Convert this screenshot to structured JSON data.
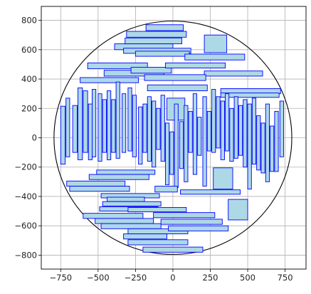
{
  "chart_data": {
    "type": "scatter",
    "title": "",
    "xlabel": "",
    "ylabel": "",
    "xlim": [
      -880,
      890
    ],
    "ylim": [
      -895,
      895
    ],
    "aspect": "equal",
    "grid": true,
    "xticks": [
      -750,
      -500,
      -250,
      0,
      250,
      500,
      750
    ],
    "yticks": [
      -800,
      -600,
      -400,
      -200,
      0,
      200,
      400,
      600,
      800
    ],
    "tick_labels_x": [
      "−750",
      "−500",
      "−250",
      "0",
      "250",
      "500",
      "750"
    ],
    "tick_labels_y": [
      "−800",
      "−600",
      "−400",
      "−200",
      "0",
      "200",
      "400",
      "600",
      "800"
    ],
    "circle": {
      "cx": 0,
      "cy": 0,
      "r": 795
    },
    "colors": {
      "rect_fill": "#add8e6",
      "rect_edge": "#0000ff",
      "circle_edge": "#000000",
      "grid": "#b0b0b0"
    },
    "rectangles": [
      {
        "x0": -180,
        "x1": 70,
        "y0": 730,
        "y1": 770
      },
      {
        "x0": -310,
        "x1": 90,
        "y0": 685,
        "y1": 725
      },
      {
        "x0": -320,
        "x1": 60,
        "y0": 640,
        "y1": 680
      },
      {
        "x0": -390,
        "x1": 0,
        "y0": 600,
        "y1": 640
      },
      {
        "x0": -330,
        "x1": 120,
        "y0": 575,
        "y1": 610
      },
      {
        "x0": -250,
        "x1": 110,
        "y0": 555,
        "y1": 590
      },
      {
        "x0": 210,
        "x1": 360,
        "y0": 580,
        "y1": 700
      },
      {
        "x0": 80,
        "x1": 480,
        "y0": 530,
        "y1": 570
      },
      {
        "x0": -570,
        "x1": -170,
        "y0": 470,
        "y1": 510
      },
      {
        "x0": -460,
        "x1": -60,
        "y0": 420,
        "y1": 460
      },
      {
        "x0": -280,
        "x1": -10,
        "y0": 440,
        "y1": 480
      },
      {
        "x0": -50,
        "x1": 350,
        "y0": 475,
        "y1": 510
      },
      {
        "x0": 210,
        "x1": 600,
        "y0": 420,
        "y1": 455
      },
      {
        "x0": -620,
        "x1": -230,
        "y0": 375,
        "y1": 410
      },
      {
        "x0": -190,
        "x1": 220,
        "y0": 390,
        "y1": 430
      },
      {
        "x0": -170,
        "x1": 230,
        "y0": 320,
        "y1": 360
      },
      {
        "x0": 320,
        "x1": 720,
        "y0": 300,
        "y1": 335
      },
      {
        "x0": 320,
        "x1": 710,
        "y0": 275,
        "y1": 305
      },
      {
        "x0": -40,
        "x1": 80,
        "y0": 120,
        "y1": 270
      },
      {
        "x0": -750,
        "x1": -720,
        "y0": -180,
        "y1": 215
      },
      {
        "x0": -715,
        "x1": -690,
        "y0": -130,
        "y1": 270
      },
      {
        "x0": -670,
        "x1": -640,
        "y0": -100,
        "y1": 220
      },
      {
        "x0": -635,
        "x1": -605,
        "y0": -150,
        "y1": 340
      },
      {
        "x0": -600,
        "x1": -570,
        "y0": -100,
        "y1": 320
      },
      {
        "x0": -565,
        "x1": -540,
        "y0": -150,
        "y1": 230
      },
      {
        "x0": -540,
        "x1": -515,
        "y0": -130,
        "y1": 330
      },
      {
        "x0": -500,
        "x1": -475,
        "y0": -160,
        "y1": 300
      },
      {
        "x0": -470,
        "x1": -445,
        "y0": -100,
        "y1": 260
      },
      {
        "x0": -440,
        "x1": -415,
        "y0": -150,
        "y1": 320
      },
      {
        "x0": -410,
        "x1": -385,
        "y0": -100,
        "y1": 260
      },
      {
        "x0": -380,
        "x1": -355,
        "y0": -140,
        "y1": 380
      },
      {
        "x0": -340,
        "x1": -315,
        "y0": -100,
        "y1": 300
      },
      {
        "x0": -300,
        "x1": -275,
        "y0": -90,
        "y1": 340
      },
      {
        "x0": -270,
        "x1": -245,
        "y0": -130,
        "y1": 290
      },
      {
        "x0": -230,
        "x1": -205,
        "y0": -180,
        "y1": 210
      },
      {
        "x0": -200,
        "x1": -175,
        "y0": -100,
        "y1": 230
      },
      {
        "x0": -170,
        "x1": -145,
        "y0": -160,
        "y1": 280
      },
      {
        "x0": -140,
        "x1": -115,
        "y0": -200,
        "y1": 250
      },
      {
        "x0": -110,
        "x1": -85,
        "y0": -80,
        "y1": 200
      },
      {
        "x0": -80,
        "x1": -55,
        "y0": -160,
        "y1": 290
      },
      {
        "x0": -50,
        "x1": -25,
        "y0": -320,
        "y1": 100
      },
      {
        "x0": -20,
        "x1": 5,
        "y0": -250,
        "y1": 40
      },
      {
        "x0": 10,
        "x1": 35,
        "y0": -340,
        "y1": 230
      },
      {
        "x0": 45,
        "x1": 70,
        "y0": -210,
        "y1": 110
      },
      {
        "x0": 75,
        "x1": 100,
        "y0": -300,
        "y1": 220
      },
      {
        "x0": 105,
        "x1": 130,
        "y0": -100,
        "y1": 180
      },
      {
        "x0": 135,
        "x1": 160,
        "y0": -250,
        "y1": 300
      },
      {
        "x0": 165,
        "x1": 190,
        "y0": -120,
        "y1": 140
      },
      {
        "x0": 200,
        "x1": 225,
        "y0": -330,
        "y1": 280
      },
      {
        "x0": 230,
        "x1": 255,
        "y0": -90,
        "y1": 180
      },
      {
        "x0": 260,
        "x1": 285,
        "y0": -100,
        "y1": 330
      },
      {
        "x0": 290,
        "x1": 315,
        "y0": -70,
        "y1": 280
      },
      {
        "x0": 320,
        "x1": 345,
        "y0": -150,
        "y1": 250
      },
      {
        "x0": 350,
        "x1": 375,
        "y0": -90,
        "y1": 300
      },
      {
        "x0": 380,
        "x1": 405,
        "y0": -160,
        "y1": 200
      },
      {
        "x0": 410,
        "x1": 435,
        "y0": -140,
        "y1": 280
      },
      {
        "x0": 440,
        "x1": 465,
        "y0": -120,
        "y1": 220
      },
      {
        "x0": 470,
        "x1": 495,
        "y0": -200,
        "y1": 260
      },
      {
        "x0": 500,
        "x1": 525,
        "y0": -350,
        "y1": 230
      },
      {
        "x0": 530,
        "x1": 555,
        "y0": -180,
        "y1": 270
      },
      {
        "x0": 560,
        "x1": 585,
        "y0": -220,
        "y1": 150
      },
      {
        "x0": 590,
        "x1": 615,
        "y0": -240,
        "y1": 100
      },
      {
        "x0": 620,
        "x1": 645,
        "y0": -300,
        "y1": 230
      },
      {
        "x0": 650,
        "x1": 675,
        "y0": -230,
        "y1": 80
      },
      {
        "x0": 680,
        "x1": 705,
        "y0": -230,
        "y1": 180
      },
      {
        "x0": 715,
        "x1": 740,
        "y0": -130,
        "y1": 250
      },
      {
        "x0": -510,
        "x1": -120,
        "y0": -250,
        "y1": -220
      },
      {
        "x0": -560,
        "x1": -160,
        "y0": -285,
        "y1": -250
      },
      {
        "x0": -710,
        "x1": -320,
        "y0": -330,
        "y1": -295
      },
      {
        "x0": -690,
        "x1": -290,
        "y0": -365,
        "y1": -330
      },
      {
        "x0": -120,
        "x1": 30,
        "y0": -370,
        "y1": -330
      },
      {
        "x0": 270,
        "x1": 400,
        "y0": -350,
        "y1": -205
      },
      {
        "x0": 50,
        "x1": 450,
        "y0": -385,
        "y1": -355
      },
      {
        "x0": -480,
        "x1": -90,
        "y0": -410,
        "y1": -380
      },
      {
        "x0": -440,
        "x1": -190,
        "y0": -435,
        "y1": -405
      },
      {
        "x0": -470,
        "x1": -80,
        "y0": -465,
        "y1": -435
      },
      {
        "x0": -490,
        "x1": -100,
        "y0": -500,
        "y1": -470
      },
      {
        "x0": -600,
        "x1": -200,
        "y0": -550,
        "y1": -515
      },
      {
        "x0": -300,
        "x1": 90,
        "y0": -505,
        "y1": -475
      },
      {
        "x0": -520,
        "x1": -130,
        "y0": -585,
        "y1": -550
      },
      {
        "x0": -130,
        "x1": 280,
        "y0": -545,
        "y1": -510
      },
      {
        "x0": -480,
        "x1": -80,
        "y0": -620,
        "y1": -585
      },
      {
        "x0": -80,
        "x1": 330,
        "y0": -590,
        "y1": -555
      },
      {
        "x0": -300,
        "x1": 100,
        "y0": -655,
        "y1": -620
      },
      {
        "x0": -30,
        "x1": 370,
        "y0": -635,
        "y1": -600
      },
      {
        "x0": -330,
        "x1": -40,
        "y0": -690,
        "y1": -655
      },
      {
        "x0": -300,
        "x1": 100,
        "y0": -730,
        "y1": -695
      },
      {
        "x0": -200,
        "x1": 200,
        "y0": -780,
        "y1": -745
      },
      {
        "x0": 370,
        "x1": 500,
        "y0": -560,
        "y1": -420
      }
    ]
  }
}
